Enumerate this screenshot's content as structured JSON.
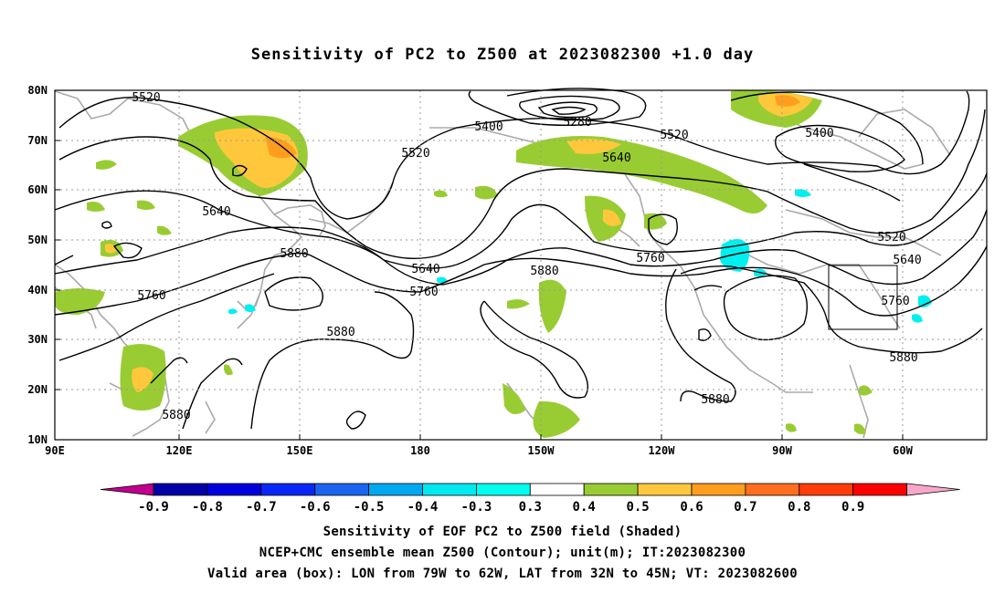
{
  "title": "Sensitivity of PC2 to Z500 at 2023082300 +1.0 day",
  "lat_labels": [
    "80N",
    "70N",
    "60N",
    "50N",
    "40N",
    "30N",
    "20N",
    "10N"
  ],
  "lon_labels": [
    "90E",
    "120E",
    "150E",
    "180",
    "150W",
    "120W",
    "90W",
    "60W"
  ],
  "contour_labels": [
    "5520",
    "5400",
    "5280",
    "5520",
    "5400",
    "5520",
    "5640",
    "5640",
    "5880",
    "5760",
    "5640",
    "5760",
    "5880",
    "5760",
    "5520",
    "5640",
    "5760",
    "5880",
    "5880",
    "5880",
    "5880"
  ],
  "colorbar": {
    "labels": [
      "-0.9",
      "-0.8",
      "-0.7",
      "-0.6",
      "-0.5",
      "-0.4",
      "-0.3",
      "0.3",
      "0.4",
      "0.5",
      "0.6",
      "0.7",
      "0.8",
      "0.9"
    ],
    "colors": [
      "#0000a8",
      "#0000dd",
      "#0a28f5",
      "#1a64f0",
      "#00a8f0",
      "#00e8f0",
      "#00ffee",
      "#ffffff",
      "#99cc33",
      "#ffc83c",
      "#ff9e1e",
      "#ff6e1e",
      "#ff3c0a",
      "#ff0000",
      "#f7a8c8"
    ],
    "left_arrow_color": "#c0008c",
    "right_arrow_color": "#f7a8c8"
  },
  "captions": {
    "line1": "Sensitivity of EOF PC2 to Z500 field (Shaded)",
    "line2": "NCEP+CMC ensemble mean Z500 (Contour); unit(m); IT:2023082300",
    "line3": "Valid area (box): LON from 79W to 62W, LAT from 32N to 45N; VT: 2023082600"
  },
  "valid_box": {
    "lon_from": "79W",
    "lon_to": "62W",
    "lat_from": "32N",
    "lat_to": "45N"
  }
}
